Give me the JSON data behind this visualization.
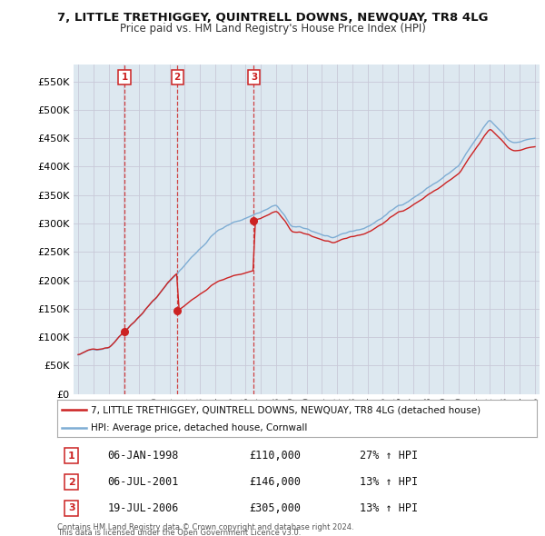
{
  "title": "7, LITTLE TRETHIGGEY, QUINTRELL DOWNS, NEWQUAY, TR8 4LG",
  "subtitle": "Price paid vs. HM Land Registry's House Price Index (HPI)",
  "legend_line1": "7, LITTLE TRETHIGGEY, QUINTRELL DOWNS, NEWQUAY, TR8 4LG (detached house)",
  "legend_line2": "HPI: Average price, detached house, Cornwall",
  "footer_line1": "Contains HM Land Registry data © Crown copyright and database right 2024.",
  "footer_line2": "This data is licensed under the Open Government Licence v3.0.",
  "transactions": [
    {
      "num": 1,
      "date": "06-JAN-1998",
      "price": 110000,
      "hpi_pct": "27% ↑ HPI",
      "x": 1998.04
    },
    {
      "num": 2,
      "date": "06-JUL-2001",
      "price": 146000,
      "hpi_pct": "13% ↑ HPI",
      "x": 2001.51
    },
    {
      "num": 3,
      "date": "19-JUL-2006",
      "price": 305000,
      "hpi_pct": "13% ↑ HPI",
      "x": 2006.54
    }
  ],
  "hpi_color": "#7eadd4",
  "price_color": "#cc2222",
  "grid_color": "#c8c8d8",
  "background_color": "#ffffff",
  "plot_bg_color": "#dde8f0",
  "ylim": [
    0,
    580000
  ],
  "yticks": [
    0,
    50000,
    100000,
    150000,
    200000,
    250000,
    300000,
    350000,
    400000,
    450000,
    500000,
    550000
  ],
  "xlim_start": 1994.7,
  "xlim_end": 2025.3
}
